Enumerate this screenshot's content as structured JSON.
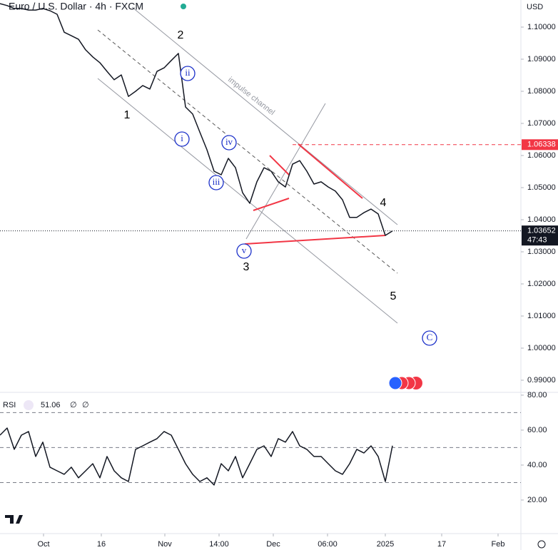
{
  "chart_data": [
    {
      "type": "line",
      "title": "Euro / U.S. Dollar · 4h · FXCM",
      "currency": "USD",
      "xlim": [
        0,
        73
      ],
      "ylim": [
        0.98622,
        1.10844
      ],
      "yticks": [
        {
          "value": 1.1,
          "label": "1.10000"
        },
        {
          "value": 1.09,
          "label": "1.09000"
        },
        {
          "value": 1.08,
          "label": "1.08000"
        },
        {
          "value": 1.07,
          "label": "1.07000"
        },
        {
          "value": 1.06,
          "label": "1.06000"
        },
        {
          "value": 1.05,
          "label": "1.05000"
        },
        {
          "value": 1.04,
          "label": "1.04000"
        },
        {
          "value": 1.03,
          "label": "1.03000"
        },
        {
          "value": 1.02,
          "label": "1.02000"
        },
        {
          "value": 1.01,
          "label": "1.01000"
        },
        {
          "value": 1.0,
          "label": "1.00000"
        },
        {
          "value": 0.99,
          "label": "0.99000"
        }
      ],
      "series": [
        {
          "name": "EURUSD",
          "color": "#131722",
          "values": [
            1.1073,
            1.1067,
            1.1058,
            1.1058,
            1.1053,
            1.1053,
            1.1058,
            1.1051,
            1.104,
            1.0984,
            1.0973,
            1.0962,
            1.0929,
            1.0907,
            1.0889,
            1.0862,
            1.0836,
            1.0851,
            1.0784,
            1.08,
            1.0818,
            1.0807,
            1.0862,
            1.0873,
            1.0896,
            1.0918,
            1.0751,
            1.0729,
            1.0673,
            1.0618,
            1.0551,
            1.054,
            1.0591,
            1.0562,
            1.0484,
            1.0451,
            1.0518,
            1.0562,
            1.0551,
            1.0518,
            1.0502,
            1.0573,
            1.0584,
            1.0551,
            1.0511,
            1.0518,
            1.0502,
            1.0489,
            1.0462,
            1.0407,
            1.0407,
            1.0422,
            1.0433,
            1.0418,
            1.0351,
            1.0365
          ]
        }
      ],
      "price_lines": [
        {
          "value": 1.06338,
          "label": "1.06338",
          "color": "#f23645"
        },
        {
          "value": 1.03652,
          "label": "1.03652",
          "countdown": "47:43",
          "color": "#131722"
        }
      ],
      "annotations": [
        "1",
        "2",
        "3",
        "4",
        "5",
        "i",
        "ii",
        "iii",
        "iv",
        "v",
        "C",
        "impulse channel"
      ]
    },
    {
      "type": "line",
      "title": "RSI",
      "last_value": 51.06,
      "settings": [
        "∅",
        "∅"
      ],
      "xlim": [
        0,
        73
      ],
      "ylim": [
        0.8,
        81.6
      ],
      "xticks": [
        {
          "value": 6.1,
          "label": "Oct"
        },
        {
          "value": 14.2,
          "label": "16"
        },
        {
          "value": 23.1,
          "label": "Nov"
        },
        {
          "value": 30.7,
          "label": "14:00"
        },
        {
          "value": 38.3,
          "label": "Dec"
        },
        {
          "value": 45.9,
          "label": "06:00"
        },
        {
          "value": 54.0,
          "label": "2025"
        },
        {
          "value": 61.9,
          "label": "17"
        },
        {
          "value": 69.8,
          "label": "Feb"
        }
      ],
      "yticks": [
        {
          "value": 80,
          "label": "80.00"
        },
        {
          "value": 60,
          "label": "60.00"
        },
        {
          "value": 40,
          "label": "40.00"
        },
        {
          "value": 20,
          "label": "20.00"
        }
      ],
      "levels": [
        70,
        50,
        30
      ],
      "series": [
        {
          "name": "RSI",
          "color": "#131722",
          "values": [
            57.1,
            61.2,
            49.0,
            57.1,
            59.2,
            44.9,
            53.1,
            38.8,
            36.7,
            34.7,
            38.8,
            32.7,
            36.7,
            40.8,
            32.7,
            44.9,
            36.7,
            32.7,
            30.6,
            49.0,
            51.0,
            53.1,
            55.1,
            59.2,
            57.1,
            49.0,
            40.8,
            34.7,
            30.6,
            32.7,
            28.6,
            40.8,
            36.7,
            44.9,
            32.7,
            40.8,
            49.0,
            51.0,
            44.9,
            55.1,
            53.1,
            59.2,
            51.0,
            49.0,
            44.9,
            44.9,
            40.8,
            36.7,
            34.7,
            40.8,
            49.0,
            46.9,
            51.0,
            44.9,
            30.6,
            51.06
          ]
        }
      ]
    }
  ]
}
